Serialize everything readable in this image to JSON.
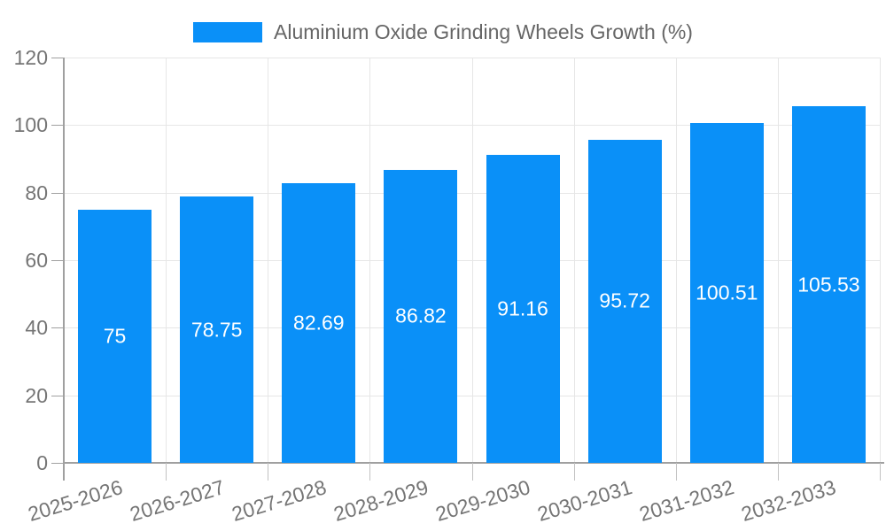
{
  "chart_data": {
    "type": "bar",
    "title": "Aluminium Oxide Grinding Wheels Growth (%)",
    "categories": [
      "2025-2026",
      "2026-2027",
      "2027-2028",
      "2028-2029",
      "2029-2030",
      "2030-2031",
      "2031-2032",
      "2032-2033"
    ],
    "values": [
      75,
      78.75,
      82.69,
      86.82,
      91.16,
      95.72,
      100.51,
      105.53
    ],
    "value_labels": [
      "75",
      "78.75",
      "82.69",
      "86.82",
      "91.16",
      "95.72",
      "100.51",
      "105.53"
    ],
    "xlabel": "",
    "ylabel": "",
    "ylim": [
      0,
      120
    ],
    "yticks": [
      0,
      20,
      40,
      60,
      80,
      100,
      120
    ],
    "grid": true,
    "legend_position": "top"
  },
  "colors": {
    "bar": "#0A90F8",
    "bar_label": "#ffffff",
    "grid": "#e6e6e6",
    "axis": "#a0a0a0",
    "x_tick": "#c2c2c2",
    "tick_text": "#757575",
    "legend_text": "#666666",
    "background": "#ffffff"
  }
}
